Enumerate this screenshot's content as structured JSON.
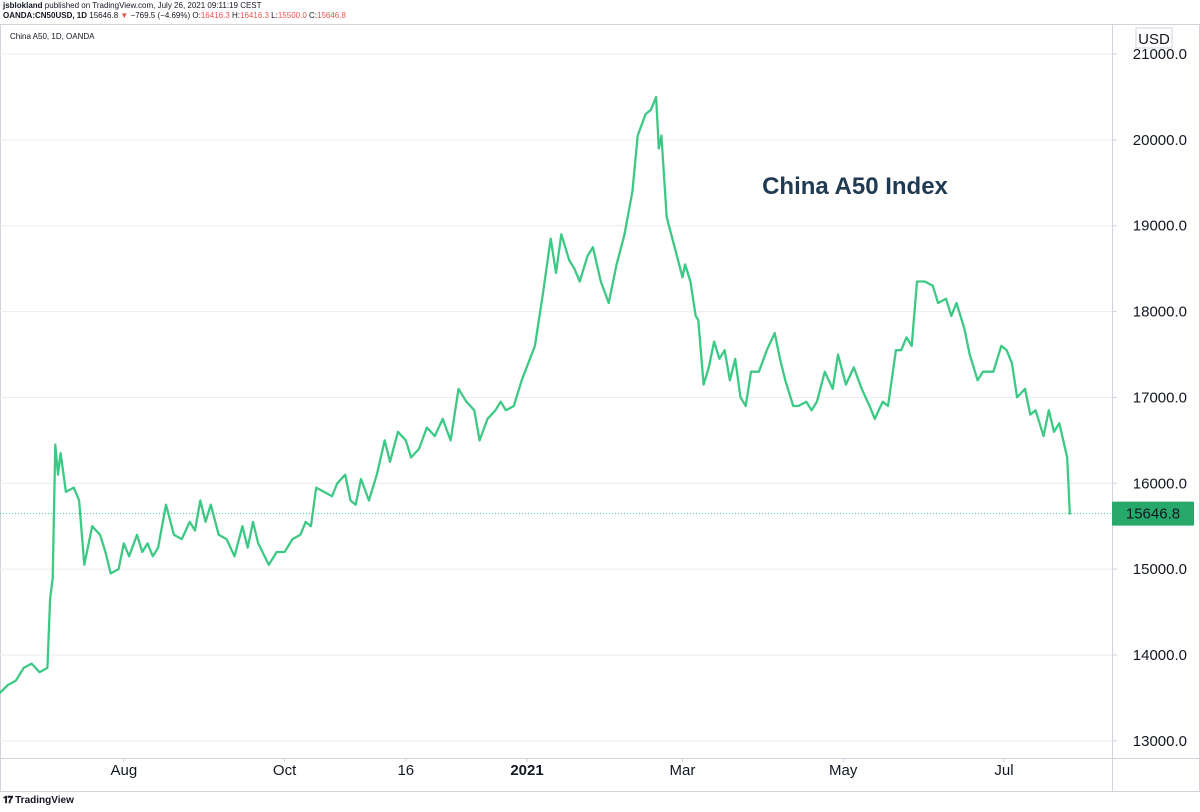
{
  "header": {
    "author": "jsblokland",
    "published": "published on TradingView.com, July 26, 2021 09:11:19 CEST",
    "symbol": "OANDA:CN50USD, 1D",
    "last": "15646.8",
    "change_arrow": "▼",
    "change": "−769.5 (−4.69%)",
    "o_label": "O:",
    "o": "16416.3",
    "h_label": "H:",
    "h": "16416.3",
    "l_label": "L:",
    "l": "15500.0",
    "c_label": "C:",
    "c": "15646.8"
  },
  "pane": {
    "legend": "China A50, 1D, OANDA",
    "currency": "USD"
  },
  "footer": {
    "brand": "TradingView",
    "logo_icon": "tradingview-logo-icon"
  },
  "colors": {
    "line": "#3dc985",
    "price_tag": "#26a96b",
    "grid": "#e9ebef",
    "down": "#ef5350"
  },
  "chart_data": {
    "type": "line",
    "title": "China A50 Index",
    "xlabel": "",
    "ylabel": "",
    "ylim": [
      12800,
      21350
    ],
    "yticks": [
      13000,
      14000,
      15000,
      16000,
      17000,
      18000,
      19000,
      20000,
      21000
    ],
    "ytick_labels": [
      "13000.0",
      "14000.0",
      "15000.0",
      "16000.0",
      "17000.0",
      "18000.0",
      "19000.0",
      "20000.0",
      "21000.0"
    ],
    "xlim": [
      "2020-06-15",
      "2021-08-11"
    ],
    "xticks": [
      {
        "date": "2020-08-01",
        "label": "Aug",
        "bold": false
      },
      {
        "date": "2020-10-01",
        "label": "Oct",
        "bold": false
      },
      {
        "date": "2020-11-16",
        "label": "16",
        "bold": false
      },
      {
        "date": "2021-01-01",
        "label": "2021",
        "bold": true
      },
      {
        "date": "2021-03-01",
        "label": "Mar",
        "bold": false
      },
      {
        "date": "2021-05-01",
        "label": "May",
        "bold": false
      },
      {
        "date": "2021-07-01",
        "label": "Jul",
        "bold": false
      }
    ],
    "last_value": 15646.8,
    "last_label": "15646.8",
    "series": [
      {
        "points": [
          [
            "2020-06-15",
            13560
          ],
          [
            "2020-06-18",
            13650
          ],
          [
            "2020-06-21",
            13700
          ],
          [
            "2020-06-24",
            13850
          ],
          [
            "2020-06-27",
            13900
          ],
          [
            "2020-06-30",
            13800
          ],
          [
            "2020-07-03",
            13850
          ],
          [
            "2020-07-04",
            14650
          ],
          [
            "2020-07-05",
            14900
          ],
          [
            "2020-07-06",
            16450
          ],
          [
            "2020-07-07",
            16100
          ],
          [
            "2020-07-08",
            16350
          ],
          [
            "2020-07-10",
            15900
          ],
          [
            "2020-07-13",
            15950
          ],
          [
            "2020-07-15",
            15800
          ],
          [
            "2020-07-17",
            15050
          ],
          [
            "2020-07-20",
            15500
          ],
          [
            "2020-07-23",
            15400
          ],
          [
            "2020-07-25",
            15200
          ],
          [
            "2020-07-27",
            14950
          ],
          [
            "2020-07-30",
            15000
          ],
          [
            "2020-08-01",
            15300
          ],
          [
            "2020-08-03",
            15150
          ],
          [
            "2020-08-06",
            15400
          ],
          [
            "2020-08-08",
            15200
          ],
          [
            "2020-08-10",
            15300
          ],
          [
            "2020-08-12",
            15150
          ],
          [
            "2020-08-14",
            15250
          ],
          [
            "2020-08-17",
            15750
          ],
          [
            "2020-08-20",
            15400
          ],
          [
            "2020-08-23",
            15350
          ],
          [
            "2020-08-26",
            15550
          ],
          [
            "2020-08-28",
            15450
          ],
          [
            "2020-08-30",
            15800
          ],
          [
            "2020-09-01",
            15550
          ],
          [
            "2020-09-03",
            15750
          ],
          [
            "2020-09-06",
            15400
          ],
          [
            "2020-09-09",
            15350
          ],
          [
            "2020-09-12",
            15150
          ],
          [
            "2020-09-15",
            15500
          ],
          [
            "2020-09-17",
            15250
          ],
          [
            "2020-09-19",
            15550
          ],
          [
            "2020-09-21",
            15300
          ],
          [
            "2020-09-25",
            15050
          ],
          [
            "2020-09-28",
            15200
          ],
          [
            "2020-10-01",
            15200
          ],
          [
            "2020-10-04",
            15350
          ],
          [
            "2020-10-07",
            15400
          ],
          [
            "2020-10-09",
            15550
          ],
          [
            "2020-10-11",
            15500
          ],
          [
            "2020-10-13",
            15950
          ],
          [
            "2020-10-16",
            15900
          ],
          [
            "2020-10-19",
            15850
          ],
          [
            "2020-10-21",
            16000
          ],
          [
            "2020-10-24",
            16100
          ],
          [
            "2020-10-26",
            15800
          ],
          [
            "2020-10-28",
            15750
          ],
          [
            "2020-10-30",
            16050
          ],
          [
            "2020-11-02",
            15800
          ],
          [
            "2020-11-05",
            16100
          ],
          [
            "2020-11-08",
            16500
          ],
          [
            "2020-11-10",
            16250
          ],
          [
            "2020-11-13",
            16600
          ],
          [
            "2020-11-16",
            16500
          ],
          [
            "2020-11-18",
            16300
          ],
          [
            "2020-11-21",
            16400
          ],
          [
            "2020-11-24",
            16650
          ],
          [
            "2020-11-27",
            16550
          ],
          [
            "2020-11-30",
            16750
          ],
          [
            "2020-12-03",
            16500
          ],
          [
            "2020-12-06",
            17100
          ],
          [
            "2020-12-09",
            16950
          ],
          [
            "2020-12-12",
            16850
          ],
          [
            "2020-12-14",
            16500
          ],
          [
            "2020-12-17",
            16750
          ],
          [
            "2020-12-20",
            16850
          ],
          [
            "2020-12-22",
            16950
          ],
          [
            "2020-12-24",
            16850
          ],
          [
            "2020-12-27",
            16900
          ],
          [
            "2020-12-30",
            17200
          ],
          [
            "2021-01-04",
            17600
          ],
          [
            "2021-01-07",
            18200
          ],
          [
            "2021-01-10",
            18850
          ],
          [
            "2021-01-12",
            18450
          ],
          [
            "2021-01-14",
            18900
          ],
          [
            "2021-01-17",
            18600
          ],
          [
            "2021-01-19",
            18500
          ],
          [
            "2021-01-21",
            18350
          ],
          [
            "2021-01-24",
            18650
          ],
          [
            "2021-01-26",
            18750
          ],
          [
            "2021-01-29",
            18350
          ],
          [
            "2021-02-01",
            18100
          ],
          [
            "2021-02-04",
            18550
          ],
          [
            "2021-02-07",
            18900
          ],
          [
            "2021-02-10",
            19400
          ],
          [
            "2021-02-12",
            20050
          ],
          [
            "2021-02-15",
            20300
          ],
          [
            "2021-02-17",
            20350
          ],
          [
            "2021-02-19",
            20500
          ],
          [
            "2021-02-20",
            19900
          ],
          [
            "2021-02-21",
            20050
          ],
          [
            "2021-02-23",
            19100
          ],
          [
            "2021-02-26",
            18750
          ],
          [
            "2021-03-01",
            18400
          ],
          [
            "2021-03-02",
            18550
          ],
          [
            "2021-03-04",
            18350
          ],
          [
            "2021-03-06",
            17950
          ],
          [
            "2021-03-07",
            17900
          ],
          [
            "2021-03-09",
            17150
          ],
          [
            "2021-03-11",
            17350
          ],
          [
            "2021-03-13",
            17650
          ],
          [
            "2021-03-15",
            17450
          ],
          [
            "2021-03-17",
            17550
          ],
          [
            "2021-03-19",
            17200
          ],
          [
            "2021-03-21",
            17450
          ],
          [
            "2021-03-23",
            17000
          ],
          [
            "2021-03-25",
            16900
          ],
          [
            "2021-03-27",
            17300
          ],
          [
            "2021-03-30",
            17300
          ],
          [
            "2021-04-02",
            17550
          ],
          [
            "2021-04-05",
            17750
          ],
          [
            "2021-04-07",
            17450
          ],
          [
            "2021-04-09",
            17200
          ],
          [
            "2021-04-12",
            16900
          ],
          [
            "2021-04-14",
            16900
          ],
          [
            "2021-04-17",
            16950
          ],
          [
            "2021-04-19",
            16850
          ],
          [
            "2021-04-21",
            16950
          ],
          [
            "2021-04-24",
            17300
          ],
          [
            "2021-04-27",
            17100
          ],
          [
            "2021-04-29",
            17500
          ],
          [
            "2021-05-02",
            17150
          ],
          [
            "2021-05-05",
            17350
          ],
          [
            "2021-05-08",
            17100
          ],
          [
            "2021-05-11",
            16900
          ],
          [
            "2021-05-13",
            16750
          ],
          [
            "2021-05-16",
            16950
          ],
          [
            "2021-05-18",
            16900
          ],
          [
            "2021-05-21",
            17550
          ],
          [
            "2021-05-23",
            17550
          ],
          [
            "2021-05-25",
            17700
          ],
          [
            "2021-05-27",
            17600
          ],
          [
            "2021-05-29",
            18350
          ],
          [
            "2021-06-01",
            18350
          ],
          [
            "2021-06-04",
            18300
          ],
          [
            "2021-06-06",
            18100
          ],
          [
            "2021-06-09",
            18150
          ],
          [
            "2021-06-11",
            17950
          ],
          [
            "2021-06-13",
            18100
          ],
          [
            "2021-06-16",
            17800
          ],
          [
            "2021-06-18",
            17500
          ],
          [
            "2021-06-21",
            17200
          ],
          [
            "2021-06-23",
            17300
          ],
          [
            "2021-06-27",
            17300
          ],
          [
            "2021-06-30",
            17600
          ],
          [
            "2021-07-02",
            17550
          ],
          [
            "2021-07-04",
            17400
          ],
          [
            "2021-07-06",
            17000
          ],
          [
            "2021-07-09",
            17100
          ],
          [
            "2021-07-11",
            16800
          ],
          [
            "2021-07-13",
            16850
          ],
          [
            "2021-07-16",
            16550
          ],
          [
            "2021-07-18",
            16850
          ],
          [
            "2021-07-20",
            16600
          ],
          [
            "2021-07-22",
            16700
          ],
          [
            "2021-07-25",
            16300
          ],
          [
            "2021-07-26",
            15646.8
          ]
        ]
      }
    ]
  }
}
